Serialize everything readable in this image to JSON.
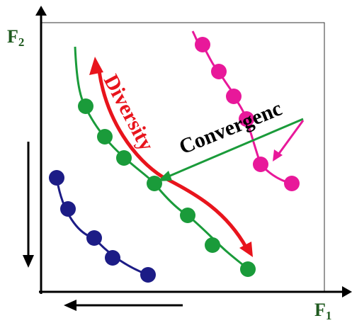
{
  "axes": {
    "x_label": "F",
    "x_subscript": "1",
    "y_label": "F",
    "y_subscript": "2"
  },
  "annotations": {
    "diversity": "Diversity",
    "convergence": "Convergenc"
  },
  "colors": {
    "front_blue": "#1c1c86",
    "front_green": "#1a9b3a",
    "front_magenta": "#e8189a",
    "diversity_arrow": "#e8141c",
    "convergence_arrow": "#1a9b3a",
    "axis_label": "#1f5a1f",
    "axis": "#000000"
  }
}
